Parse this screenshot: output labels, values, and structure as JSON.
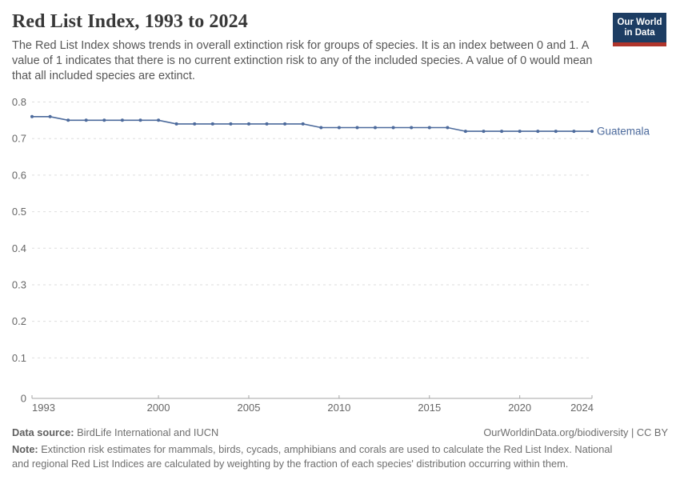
{
  "header": {
    "title": "Red List Index, 1993 to 2024",
    "subtitle": "The Red List Index shows trends in overall extinction risk for groups of species. It is an index between 0 and 1. A value of 1 indicates that there is no current extinction risk to any of the included species. A value of 0 would mean that all included species are extinct.",
    "logo": {
      "line1": "Our World",
      "line2": "in Data",
      "bg_color": "#1d3d63",
      "accent_color": "#b0352c"
    }
  },
  "chart_data": {
    "type": "line",
    "title": "Red List Index, 1993 to 2024",
    "x": [
      1993,
      1994,
      1995,
      1996,
      1997,
      1998,
      1999,
      2000,
      2001,
      2002,
      2003,
      2004,
      2005,
      2006,
      2007,
      2008,
      2009,
      2010,
      2011,
      2012,
      2013,
      2014,
      2015,
      2016,
      2017,
      2018,
      2019,
      2020,
      2021,
      2022,
      2023,
      2024
    ],
    "series": [
      {
        "name": "Guatemala",
        "color": "#4C6A9C",
        "values": [
          0.76,
          0.76,
          0.75,
          0.75,
          0.75,
          0.75,
          0.75,
          0.75,
          0.74,
          0.74,
          0.74,
          0.74,
          0.74,
          0.74,
          0.74,
          0.74,
          0.73,
          0.73,
          0.73,
          0.73,
          0.73,
          0.73,
          0.73,
          0.73,
          0.72,
          0.72,
          0.72,
          0.72,
          0.72,
          0.72,
          0.72,
          0.72
        ]
      }
    ],
    "xlabel": "",
    "ylabel": "",
    "ylim": [
      0,
      0.8
    ],
    "yticks": [
      0,
      0.1,
      0.2,
      0.3,
      0.4,
      0.5,
      0.6,
      0.7,
      0.8
    ],
    "xticks": [
      1993,
      2000,
      2005,
      2010,
      2015,
      2020,
      2024
    ],
    "grid": "horizontal-dashed",
    "legend_position": "end-of-line-label",
    "colors": {
      "grid": "#dedede",
      "axis": "#a5a5a5",
      "tick_label": "#666666"
    }
  },
  "footer": {
    "datasource_label": "Data source:",
    "datasource_value": " BirdLife International and IUCN",
    "attribution": "OurWorldinData.org/biodiversity | CC BY",
    "note_label": "Note:",
    "note_value": " Extinction risk estimates for mammals, birds, cycads, amphibians and corals are used to calculate the Red List Index. National and regional Red List Indices are calculated by weighting by the fraction of each species' distribution occurring within them."
  }
}
